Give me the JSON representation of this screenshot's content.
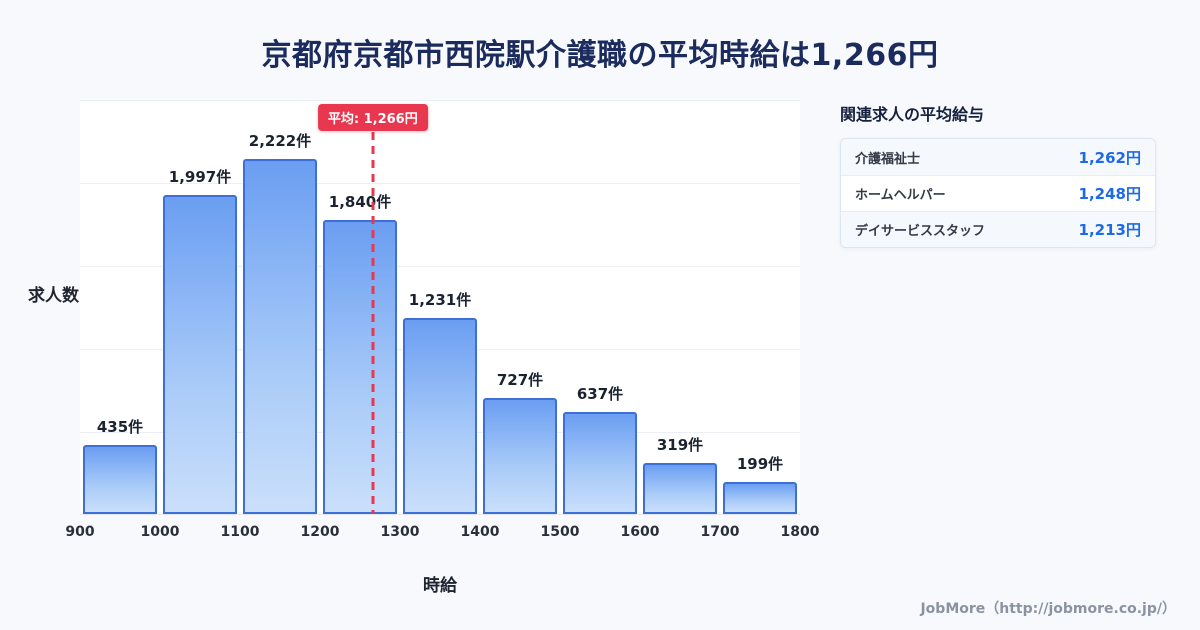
{
  "page": {
    "title": "京都府京都市西院駅介護職の平均時給は1,266円",
    "footer": "JobMore（http://jobmore.co.jp/）",
    "background_color": "#f7f9fc",
    "title_color": "#1b2b5e"
  },
  "chart_data": {
    "type": "bar",
    "title": "京都府京都市西院駅介護職の平均時給は1,266円",
    "xlabel": "時給",
    "ylabel": "求人数",
    "bin_edges": [
      900,
      1000,
      1100,
      1200,
      1300,
      1400,
      1500,
      1600,
      1700,
      1800
    ],
    "values": [
      435,
      1997,
      2222,
      1840,
      1231,
      727,
      637,
      319,
      199
    ],
    "bar_labels": [
      "435件",
      "1,997件",
      "2,222件",
      "1,840件",
      "1,231件",
      "727件",
      "637件",
      "319件",
      "199件"
    ],
    "average": 1266,
    "average_label": "平均: 1,266円",
    "ylim": [
      0,
      2600
    ],
    "grid": true,
    "gridline_count": 5,
    "legend": "none",
    "colors": {
      "bar_gradient_top": "#6b9ef2",
      "bar_gradient_bottom": "#cadffb",
      "bar_border": "#3d6fd6",
      "average_line": "#e8374f",
      "value_accent": "#1d6ae5"
    }
  },
  "sidebar": {
    "heading": "関連求人の平均給与",
    "rows": [
      {
        "label": "介護福祉士",
        "value": "1,262円"
      },
      {
        "label": "ホームヘルパー",
        "value": "1,248円"
      },
      {
        "label": "デイサービススタッフ",
        "value": "1,213円"
      }
    ]
  }
}
